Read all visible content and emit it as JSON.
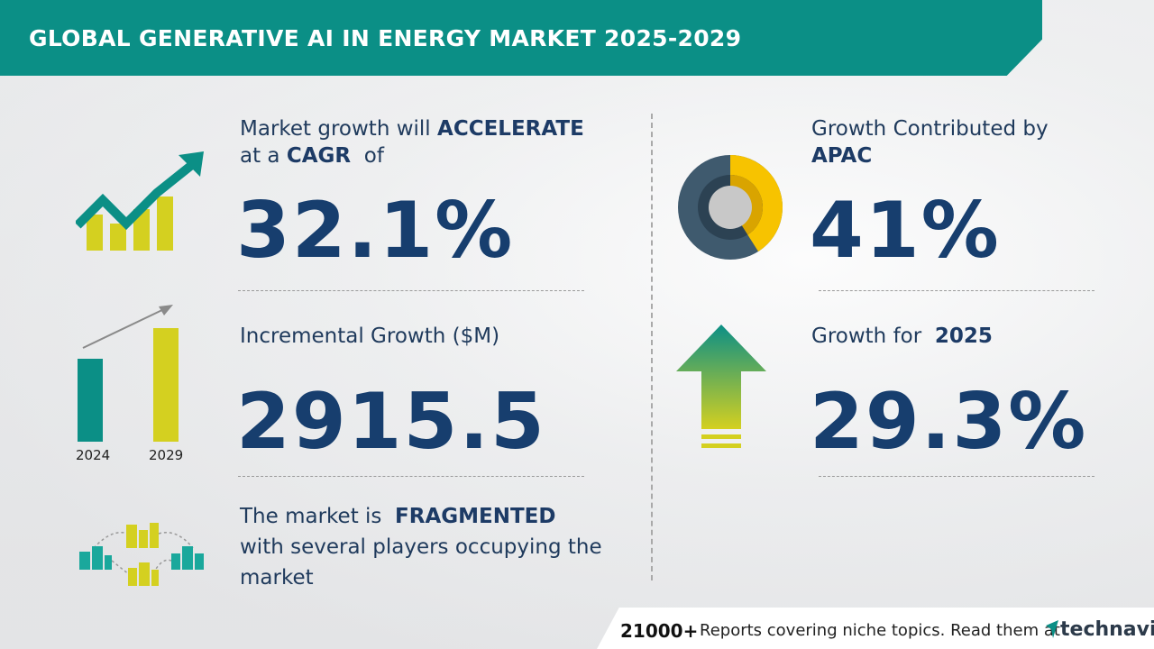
{
  "header": {
    "title": "GLOBAL GENERATIVE AI IN ENERGY MARKET 2025-2029"
  },
  "cagr": {
    "line1_prefix": "Market growth will",
    "line1_bold": "ACCELERATE",
    "line2_prefix": "at a",
    "line2_bold": "CAGR",
    "line2_suffix": "of",
    "value": "32.1%"
  },
  "incremental": {
    "label": "Incremental Growth ($M)",
    "value": "2915.5",
    "years": [
      "2024",
      "2029"
    ]
  },
  "fragmented": {
    "prefix": "The market is",
    "bold": "FRAGMENTED",
    "line2": "with several players occupying the",
    "line3": "market"
  },
  "region": {
    "label": "Growth Contributed by",
    "bold": "APAC",
    "value": "41%",
    "share_percent": 41
  },
  "growth_year": {
    "label": "Growth for",
    "bold": "2025",
    "value": "29.3%"
  },
  "footer": {
    "count": "21000+",
    "text": "Reports covering niche topics. Read them at",
    "brand": "technavio"
  },
  "colors": {
    "teal": "#0b8f86",
    "navy": "#173e6e",
    "lime": "#d4d020",
    "yellow": "#f7c300",
    "slate": "#3f5a6e"
  }
}
